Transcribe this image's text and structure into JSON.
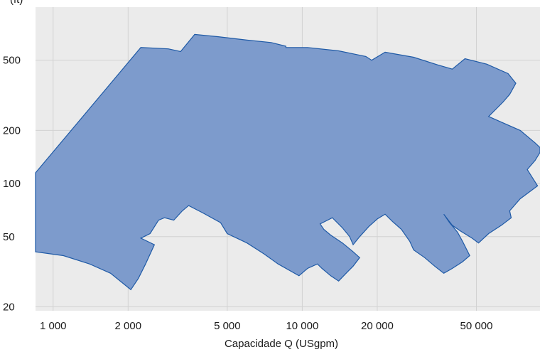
{
  "chart_data": {
    "type": "area",
    "title": "",
    "xlabel": "Capacidade Q (USgpm)",
    "ylabel": "",
    "ylabel_partial": "(ft)",
    "x_scale": "log",
    "y_scale": "log",
    "xlim": [
      850,
      90000
    ],
    "ylim": [
      19,
      1000
    ],
    "x_ticks": [
      1000,
      2000,
      5000,
      10000,
      20000,
      50000
    ],
    "x_tick_labels": [
      "1 000",
      "2 000",
      "5 000",
      "10 000",
      "20 000",
      "50 000"
    ],
    "y_ticks": [
      20,
      50,
      100,
      200,
      500
    ],
    "y_tick_labels": [
      "20",
      "50",
      "100",
      "200",
      "500"
    ],
    "grid": true,
    "colors": {
      "fill": "#7d9bcc",
      "stroke": "#1f5aa6",
      "plot_bg": "#ebebeb",
      "grid": "#d2d2d2"
    },
    "envelope": [
      [
        850,
        115
      ],
      [
        2250,
        590
      ],
      [
        2900,
        580
      ],
      [
        3250,
        560
      ],
      [
        3700,
        700
      ],
      [
        4600,
        680
      ],
      [
        6000,
        650
      ],
      [
        7500,
        630
      ],
      [
        8600,
        600
      ],
      [
        8600,
        590
      ],
      [
        10500,
        590
      ],
      [
        14000,
        565
      ],
      [
        18000,
        525
      ],
      [
        19000,
        500
      ],
      [
        21500,
        555
      ],
      [
        28000,
        520
      ],
      [
        35000,
        470
      ],
      [
        40000,
        445
      ],
      [
        45000,
        510
      ],
      [
        55000,
        475
      ],
      [
        67000,
        420
      ],
      [
        72000,
        370
      ],
      [
        68000,
        320
      ],
      [
        64000,
        290
      ],
      [
        56000,
        240
      ],
      [
        62000,
        225
      ],
      [
        75000,
        200
      ],
      [
        86000,
        170
      ],
      [
        90000,
        160
      ],
      [
        90000,
        150
      ],
      [
        86000,
        135
      ],
      [
        80000,
        120
      ],
      [
        88000,
        97
      ],
      [
        75000,
        82
      ],
      [
        68000,
        70
      ],
      [
        69000,
        64
      ],
      [
        63000,
        58
      ],
      [
        56000,
        52
      ],
      [
        51000,
        46
      ],
      [
        48000,
        49
      ],
      [
        43000,
        54
      ],
      [
        40000,
        58
      ],
      [
        37000,
        67
      ],
      [
        39000,
        60
      ],
      [
        42000,
        53
      ],
      [
        44000,
        47
      ],
      [
        47000,
        39
      ],
      [
        44000,
        36
      ],
      [
        40000,
        33
      ],
      [
        37000,
        31
      ],
      [
        34000,
        34
      ],
      [
        31000,
        38
      ],
      [
        28000,
        42
      ],
      [
        27000,
        47
      ],
      [
        25000,
        55
      ],
      [
        23000,
        61
      ],
      [
        21500,
        67
      ],
      [
        20000,
        63
      ],
      [
        18500,
        57
      ],
      [
        17000,
        50
      ],
      [
        16000,
        45
      ],
      [
        15500,
        50
      ],
      [
        14500,
        56
      ],
      [
        13200,
        64
      ],
      [
        11800,
        59
      ],
      [
        12200,
        55
      ],
      [
        13000,
        51
      ],
      [
        14500,
        46
      ],
      [
        16000,
        41
      ],
      [
        17000,
        38
      ],
      [
        16000,
        34
      ],
      [
        15000,
        31
      ],
      [
        14000,
        28
      ],
      [
        13000,
        30
      ],
      [
        12000,
        33
      ],
      [
        11500,
        35
      ],
      [
        10500,
        33
      ],
      [
        9700,
        30
      ],
      [
        8000,
        35
      ],
      [
        7000,
        40
      ],
      [
        6000,
        46
      ],
      [
        5000,
        52
      ],
      [
        4700,
        60
      ],
      [
        4000,
        68
      ],
      [
        3500,
        75
      ],
      [
        3300,
        70
      ],
      [
        3050,
        62
      ],
      [
        2800,
        64
      ],
      [
        2650,
        62
      ],
      [
        2450,
        52
      ],
      [
        2250,
        49
      ],
      [
        2550,
        45
      ],
      [
        2350,
        35
      ],
      [
        2200,
        29
      ],
      [
        2050,
        25
      ],
      [
        1700,
        31
      ],
      [
        1400,
        35
      ],
      [
        1100,
        39
      ],
      [
        850,
        41
      ]
    ]
  }
}
